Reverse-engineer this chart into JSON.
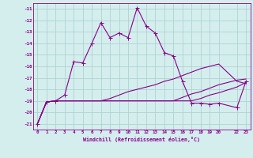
{
  "xlabel": "Windchill (Refroidissement éolien,°C)",
  "background_color": "#d4eeee",
  "grid_color": "#aacccc",
  "line_color": "#880088",
  "xlim": [
    -0.5,
    23.5
  ],
  "ylim": [
    -21.5,
    -10.5
  ],
  "xtick_vals": [
    0,
    1,
    2,
    3,
    4,
    5,
    6,
    7,
    8,
    9,
    10,
    11,
    12,
    13,
    14,
    15,
    16,
    17,
    18,
    19,
    20,
    22,
    23
  ],
  "xtick_labels": [
    "0",
    "1",
    "2",
    "3",
    "4",
    "5",
    "6",
    "7",
    "8",
    "9",
    "10",
    "11",
    "12",
    "13",
    "14",
    "15",
    "16",
    "17",
    "18",
    "19",
    "20",
    "22",
    "23"
  ],
  "ytick_vals": [
    -21,
    -20,
    -19,
    -18,
    -17,
    -16,
    -15,
    -14,
    -13,
    -12,
    -11
  ],
  "ytick_labels": [
    "-21",
    "-20",
    "-19",
    "-18",
    "-17",
    "-16",
    "-15",
    "-14",
    "-13",
    "-12",
    "-11"
  ],
  "line1_x": [
    0,
    1,
    2,
    3,
    4,
    5,
    6,
    7,
    8,
    9,
    10,
    11,
    12,
    13,
    14,
    15,
    16,
    17,
    18,
    19,
    20,
    22,
    23
  ],
  "line1_y": [
    -21.0,
    -19.1,
    -19.0,
    -18.5,
    -15.6,
    -15.7,
    -14.0,
    -12.2,
    -13.5,
    -13.1,
    -13.5,
    -10.9,
    -12.5,
    -13.1,
    -14.8,
    -15.1,
    -17.3,
    -19.2,
    -19.2,
    -19.3,
    -19.2,
    -19.6,
    -17.3
  ],
  "line2_x": [
    0,
    1,
    2,
    3,
    4,
    5,
    6,
    7,
    8,
    9,
    10,
    11,
    12,
    13,
    14,
    15,
    16,
    17,
    18,
    19,
    20,
    22,
    23
  ],
  "line2_y": [
    -21.0,
    -19.1,
    -19.0,
    -19.0,
    -19.0,
    -19.0,
    -19.0,
    -19.0,
    -19.0,
    -19.0,
    -19.0,
    -19.0,
    -19.0,
    -19.0,
    -19.0,
    -19.0,
    -19.0,
    -19.0,
    -18.8,
    -18.5,
    -18.3,
    -17.8,
    -17.4
  ],
  "line3_x": [
    0,
    1,
    2,
    3,
    4,
    5,
    6,
    7,
    8,
    9,
    10,
    11,
    12,
    13,
    14,
    15,
    16,
    17,
    18,
    19,
    20,
    22,
    23
  ],
  "line3_y": [
    -21.0,
    -19.1,
    -19.0,
    -19.0,
    -19.0,
    -19.0,
    -19.0,
    -19.0,
    -19.0,
    -19.0,
    -19.0,
    -19.0,
    -19.0,
    -19.0,
    -19.0,
    -19.0,
    -18.7,
    -18.4,
    -18.2,
    -17.9,
    -17.6,
    -17.2,
    -17.1
  ],
  "line4_x": [
    0,
    1,
    2,
    3,
    4,
    5,
    6,
    7,
    8,
    9,
    10,
    11,
    12,
    13,
    14,
    15,
    16,
    17,
    18,
    19,
    20,
    22,
    23
  ],
  "line4_y": [
    -21.0,
    -19.1,
    -19.0,
    -19.0,
    -19.0,
    -19.0,
    -19.0,
    -19.0,
    -18.8,
    -18.5,
    -18.2,
    -18.0,
    -17.8,
    -17.6,
    -17.3,
    -17.1,
    -16.8,
    -16.5,
    -16.2,
    -16.0,
    -15.8,
    -17.3,
    -17.5
  ]
}
